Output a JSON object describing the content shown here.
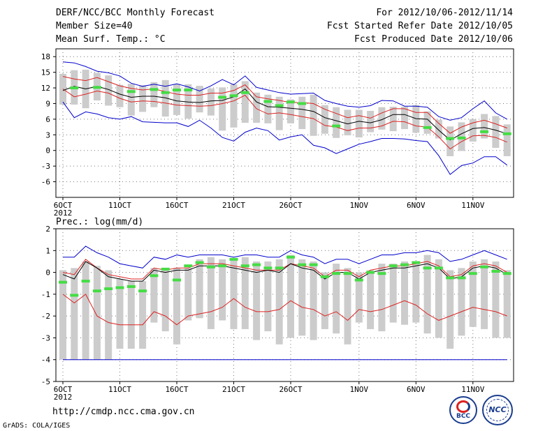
{
  "header": {
    "title": "DERF/NCC/BCC Monthly Forecast",
    "member_size": "Member Size=40",
    "variable": "Mean Surf. Temp.: °C",
    "forecast_period": "For 2012/10/06-2012/11/14",
    "started_refer": "Fcst Started Refer Date 2012/10/05",
    "produced": "Fcst Produced Date 2012/10/06"
  },
  "footer": {
    "url": "http://cmdp.ncc.cma.gov.cn",
    "credit": "GrADS: COLA/IGES",
    "logo_bcc": "BCC",
    "logo_ncc": "NCC"
  },
  "colors": {
    "grid": "#777777",
    "box": "#cccccc",
    "obs": "#44dd44",
    "mean": "#000000",
    "std": "#dd2222",
    "range": "#0000cc"
  },
  "chart_data": [
    {
      "type": "box",
      "title": "Mean Surf. Temp.: °C",
      "x_day_range": [
        1,
        40
      ],
      "xticks": [
        {
          "day": 1,
          "label": "6OCT",
          "sub": "2012"
        },
        {
          "day": 6,
          "label": "11OCT"
        },
        {
          "day": 11,
          "label": "16OCT"
        },
        {
          "day": 16,
          "label": "21OCT"
        },
        {
          "day": 21,
          "label": "26OCT"
        },
        {
          "day": 27,
          "label": "1NOV"
        },
        {
          "day": 32,
          "label": "6NOV"
        },
        {
          "day": 37,
          "label": "11NOV"
        }
      ],
      "ylim": [
        -9,
        19.5
      ],
      "yticks": [
        -6,
        -3,
        0,
        3,
        6,
        9,
        12,
        15,
        18
      ],
      "series": {
        "mean": [
          11.5,
          12.3,
          11.8,
          12.3,
          11.7,
          10.8,
          10.2,
          10.4,
          10.4,
          10.1,
          9.5,
          9.3,
          9.2,
          9.5,
          9.6,
          10.3,
          11.8,
          9.3,
          8.4,
          8.3,
          8.1,
          7.9,
          7.5,
          6.3,
          5.7,
          5.1,
          5.6,
          5.3,
          5.9,
          6.9,
          6.9,
          6.1,
          6.0,
          3.9,
          2.0,
          3.2,
          4.2,
          4.4,
          3.9,
          3.2
        ],
        "std_upper": [
          14.2,
          13.7,
          13.4,
          14.0,
          13.2,
          12.4,
          11.9,
          11.6,
          11.8,
          11.3,
          10.8,
          10.6,
          10.6,
          11.0,
          11.0,
          11.5,
          12.6,
          10.3,
          9.9,
          9.6,
          9.2,
          9.2,
          9.0,
          7.9,
          7.1,
          6.3,
          6.7,
          6.2,
          7.2,
          8.0,
          8.0,
          7.3,
          7.3,
          5.2,
          3.3,
          4.5,
          5.3,
          5.8,
          5.1,
          4.3
        ],
        "std_lower": [
          11.8,
          10.3,
          10.8,
          11.4,
          11.0,
          10.0,
          9.3,
          9.5,
          9.4,
          9.1,
          8.7,
          8.6,
          8.5,
          8.6,
          9.0,
          9.5,
          10.6,
          8.0,
          7.0,
          7.2,
          6.9,
          6.5,
          6.1,
          4.8,
          4.5,
          3.8,
          4.3,
          4.3,
          4.7,
          5.6,
          5.5,
          4.7,
          4.5,
          2.6,
          0.3,
          1.7,
          2.8,
          2.9,
          2.5,
          1.6
        ],
        "max": [
          17.0,
          16.8,
          16.1,
          15.2,
          14.9,
          14.3,
          12.9,
          12.3,
          12.7,
          12.3,
          12.8,
          12.2,
          11.4,
          12.4,
          13.6,
          12.6,
          14.3,
          12.1,
          11.6,
          11.1,
          10.8,
          10.9,
          11.0,
          9.6,
          9.0,
          8.5,
          8.3,
          8.6,
          9.6,
          9.5,
          8.5,
          8.5,
          8.3,
          6.5,
          5.8,
          6.3,
          8.0,
          9.5,
          7.2,
          6.0
        ],
        "min": [
          9.3,
          6.3,
          7.4,
          7.0,
          6.3,
          6.0,
          6.5,
          5.5,
          5.4,
          5.3,
          5.3,
          4.6,
          5.8,
          4.3,
          2.5,
          1.8,
          3.5,
          4.3,
          3.8,
          2.0,
          2.6,
          3.0,
          1.0,
          0.5,
          -0.6,
          0.3,
          1.2,
          1.7,
          2.3,
          2.3,
          2.2,
          1.9,
          1.7,
          -1.0,
          -4.6,
          -2.9,
          -2.4,
          -1.2,
          -1.2,
          -2.8
        ],
        "box_top": [
          14.7,
          15.4,
          15.5,
          14.9,
          14.4,
          12.6,
          12.8,
          12.5,
          13.1,
          13.5,
          12.7,
          12.7,
          12.4,
          11.9,
          12.1,
          12.7,
          13.3,
          11.1,
          10.7,
          10.3,
          9.8,
          10.3,
          10.7,
          8.7,
          8.3,
          7.8,
          7.8,
          7.6,
          8.3,
          8.4,
          8.4,
          8.7,
          7.5,
          5.9,
          4.6,
          5.4,
          6.0,
          7.0,
          6.6,
          5.0
        ],
        "box_bottom": [
          8.8,
          8.8,
          8.1,
          9.6,
          8.6,
          8.3,
          6.7,
          7.4,
          8.3,
          6.5,
          6.8,
          6.1,
          7.3,
          6.7,
          3.8,
          4.4,
          5.3,
          5.3,
          5.2,
          3.9,
          5.2,
          4.1,
          2.8,
          3.2,
          2.4,
          2.9,
          2.5,
          3.5,
          4.0,
          3.7,
          4.1,
          3.4,
          3.2,
          2.3,
          -1.1,
          -0.1,
          1.7,
          2.3,
          0.5,
          -1.1
        ],
        "observed": [
          null,
          12.0,
          null,
          12.1,
          null,
          null,
          11.3,
          null,
          11.7,
          11.1,
          11.6,
          11.6,
          null,
          null,
          10.2,
          10.5,
          11.1,
          null,
          9.4,
          8.6,
          9.3,
          9.0,
          null,
          null,
          4.7,
          null,
          null,
          null,
          null,
          null,
          null,
          null,
          4.4,
          null,
          2.3,
          2.4,
          null,
          3.6,
          null,
          3.2
        ]
      }
    },
    {
      "type": "box",
      "title": "Prec.: log(mm/d)",
      "x_day_range": [
        1,
        40
      ],
      "xticks": [
        {
          "day": 1,
          "label": "6OCT",
          "sub": "2012"
        },
        {
          "day": 6,
          "label": "11OCT"
        },
        {
          "day": 11,
          "label": "16OCT"
        },
        {
          "day": 16,
          "label": "21OCT"
        },
        {
          "day": 21,
          "label": "26OCT"
        },
        {
          "day": 27,
          "label": "1NOV"
        },
        {
          "day": 32,
          "label": "6NOV"
        },
        {
          "day": 37,
          "label": "11NOV"
        }
      ],
      "ylim": [
        -5,
        2
      ],
      "yticks": [
        -5,
        -4,
        -3,
        -2,
        -1,
        0,
        1,
        2
      ],
      "series": {
        "mean": [
          -0.1,
          -0.3,
          0.5,
          0.2,
          -0.2,
          -0.3,
          -0.4,
          -0.4,
          0.1,
          0.0,
          0.1,
          0.1,
          0.3,
          0.3,
          0.3,
          0.2,
          0.1,
          0.0,
          0.1,
          0.0,
          0.4,
          0.2,
          0.1,
          -0.3,
          0.0,
          0.0,
          -0.3,
          0.0,
          0.1,
          0.2,
          0.2,
          0.3,
          0.4,
          0.2,
          -0.3,
          -0.2,
          0.2,
          0.3,
          0.2,
          -0.1
        ],
        "std_upper": [
          0.0,
          -0.1,
          0.6,
          0.2,
          -0.1,
          -0.2,
          -0.3,
          -0.3,
          0.2,
          0.1,
          0.2,
          0.2,
          0.4,
          0.4,
          0.4,
          0.3,
          0.2,
          0.1,
          0.1,
          0.1,
          0.4,
          0.3,
          0.2,
          -0.2,
          0.1,
          0.1,
          -0.2,
          0.1,
          0.2,
          0.3,
          0.3,
          0.4,
          0.5,
          0.3,
          -0.2,
          -0.1,
          0.3,
          0.4,
          0.3,
          0.0
        ],
        "std_lower": [
          -1.0,
          -1.4,
          -1.0,
          -2.0,
          -2.3,
          -2.4,
          -2.4,
          -2.4,
          -1.8,
          -2.0,
          -2.4,
          -2.0,
          -1.9,
          -1.8,
          -1.6,
          -1.2,
          -1.6,
          -1.8,
          -1.8,
          -1.7,
          -1.3,
          -1.6,
          -1.7,
          -2.0,
          -1.8,
          -2.2,
          -1.7,
          -1.8,
          -1.7,
          -1.5,
          -1.3,
          -1.5,
          -1.9,
          -2.2,
          -2.0,
          -1.8,
          -1.6,
          -1.7,
          -1.8,
          -2.0
        ],
        "max": [
          0.7,
          0.7,
          1.2,
          0.9,
          0.7,
          0.4,
          0.3,
          0.2,
          0.7,
          0.6,
          0.8,
          0.7,
          0.8,
          0.8,
          0.8,
          0.7,
          0.8,
          0.8,
          0.7,
          0.7,
          1.0,
          0.8,
          0.7,
          0.4,
          0.6,
          0.6,
          0.4,
          0.6,
          0.8,
          0.8,
          0.9,
          0.9,
          1.0,
          0.9,
          0.5,
          0.6,
          0.8,
          1.0,
          0.8,
          0.6
        ],
        "min": [
          -4.0,
          -4.0,
          -4.0,
          -4.0,
          -4.0,
          -4.0,
          -4.0,
          -4.0,
          -4.0,
          -4.0,
          -4.0,
          -4.0,
          -4.0,
          -4.0,
          -4.0,
          -4.0,
          -4.0,
          -4.0,
          -4.0,
          -4.0,
          -4.0,
          -4.0,
          -4.0,
          -4.0,
          -4.0,
          -4.0,
          -4.0,
          -4.0,
          -4.0,
          -4.0,
          -4.0,
          -4.0,
          -4.0,
          -4.0,
          -4.0,
          -4.0,
          -4.0,
          -4.0,
          -4.0,
          -4.0
        ],
        "box_top": [
          0.1,
          0.2,
          0.5,
          0.3,
          0.1,
          -0.3,
          -0.4,
          -0.4,
          0.2,
          0.1,
          0.2,
          0.2,
          0.6,
          0.7,
          0.6,
          0.6,
          0.7,
          0.5,
          0.5,
          0.6,
          0.8,
          0.6,
          0.5,
          0.0,
          0.4,
          0.2,
          0.0,
          0.1,
          0.4,
          0.4,
          0.5,
          0.5,
          0.8,
          0.6,
          0.1,
          0.2,
          0.5,
          0.6,
          0.5,
          0.1
        ],
        "box_bottom": [
          -4.0,
          -4.0,
          -4.0,
          -4.0,
          -4.0,
          -3.5,
          -3.5,
          -3.5,
          -2.3,
          -2.7,
          -3.3,
          -2.2,
          -2.1,
          -2.6,
          -2.2,
          -2.6,
          -2.6,
          -3.1,
          -2.7,
          -3.3,
          -3.0,
          -2.9,
          -3.1,
          -2.6,
          -2.8,
          -3.3,
          -2.3,
          -2.6,
          -2.7,
          -2.3,
          -2.4,
          -2.3,
          -2.8,
          -3.0,
          -3.5,
          -2.9,
          -2.5,
          -2.6,
          -3.0,
          -3.0
        ],
        "observed": [
          -0.45,
          -1.05,
          -0.4,
          -0.85,
          -0.75,
          -0.7,
          -0.65,
          -0.85,
          -0.15,
          0.15,
          -0.35,
          0.3,
          0.45,
          0.25,
          0.3,
          0.6,
          0.3,
          0.35,
          0.2,
          0.2,
          0.7,
          0.35,
          0.35,
          -0.2,
          -0.05,
          -0.05,
          -0.35,
          0.0,
          -0.05,
          0.3,
          0.35,
          0.45,
          0.2,
          0.2,
          -0.25,
          -0.25,
          -0.05,
          0.25,
          0.05,
          -0.05
        ]
      }
    }
  ]
}
